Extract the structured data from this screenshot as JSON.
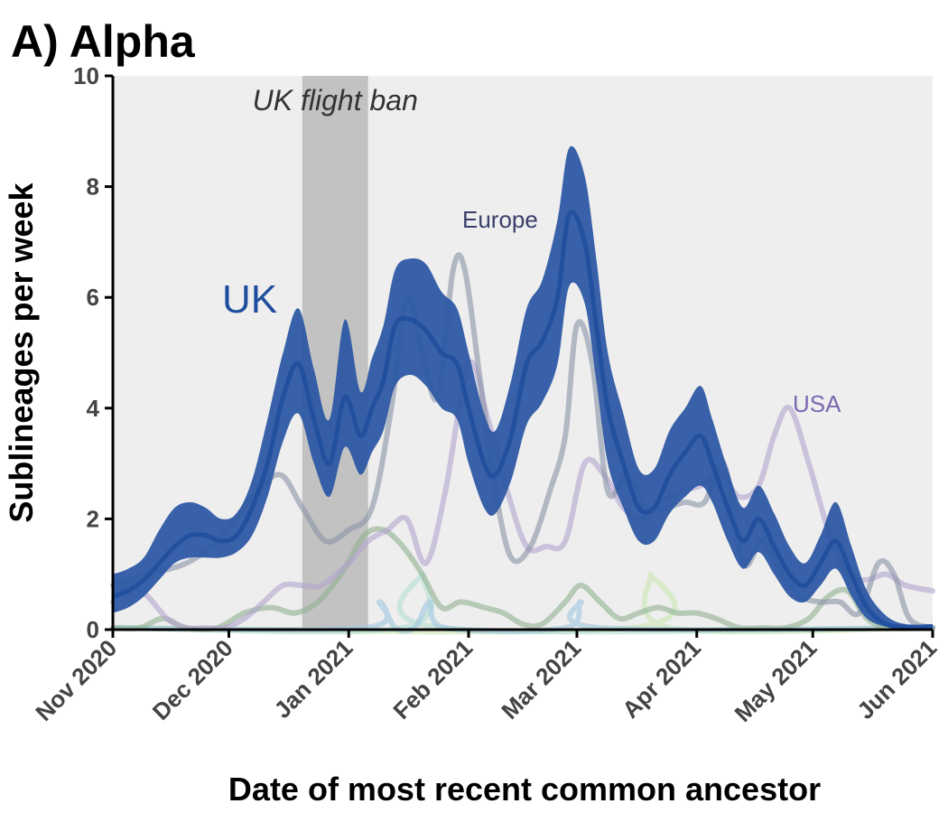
{
  "chart_data": {
    "type": "line",
    "title": "A) Alpha",
    "xlabel": "Date of most recent common ancestor",
    "ylabel": "Sublineages per week",
    "xlim": [
      "2020-11-01",
      "2021-06-01"
    ],
    "ylim": [
      0,
      10
    ],
    "yticks": [
      0,
      2,
      4,
      6,
      8,
      10
    ],
    "xticks": [
      {
        "date": "2020-11-01",
        "label": "Nov 2020"
      },
      {
        "date": "2020-12-01",
        "label": "Dec 2020"
      },
      {
        "date": "2021-01-01",
        "label": "Jan 2021"
      },
      {
        "date": "2021-02-01",
        "label": "Feb 2021"
      },
      {
        "date": "2021-03-01",
        "label": "Mar 2021"
      },
      {
        "date": "2021-04-01",
        "label": "Apr 2021"
      },
      {
        "date": "2021-05-01",
        "label": "May 2021"
      },
      {
        "date": "2021-06-01",
        "label": "Jun 2021"
      }
    ],
    "shaded_region": {
      "start": "2020-12-20",
      "end": "2021-01-06",
      "label": "UK flight ban"
    },
    "series": [
      {
        "name": "UK",
        "color": "#1f4e9e",
        "band_color": "#2d58a4",
        "x": [
          "2020-11-01",
          "2020-11-05",
          "2020-11-09",
          "2020-11-13",
          "2020-11-17",
          "2020-11-21",
          "2020-11-25",
          "2020-11-29",
          "2020-12-03",
          "2020-12-07",
          "2020-12-11",
          "2020-12-15",
          "2020-12-19",
          "2020-12-23",
          "2020-12-27",
          "2020-12-31",
          "2021-01-04",
          "2021-01-07",
          "2021-01-10",
          "2021-01-13",
          "2021-01-17",
          "2021-01-21",
          "2021-01-25",
          "2021-01-29",
          "2021-02-01",
          "2021-02-05",
          "2021-02-08",
          "2021-02-12",
          "2021-02-16",
          "2021-02-20",
          "2021-02-24",
          "2021-02-27",
          "2021-03-03",
          "2021-03-06",
          "2021-03-09",
          "2021-03-13",
          "2021-03-17",
          "2021-03-21",
          "2021-03-25",
          "2021-03-29",
          "2021-04-02",
          "2021-04-05",
          "2021-04-09",
          "2021-04-13",
          "2021-04-17",
          "2021-04-21",
          "2021-04-25",
          "2021-04-29",
          "2021-05-03",
          "2021-05-07",
          "2021-05-11",
          "2021-05-15",
          "2021-05-20",
          "2021-05-25",
          "2021-06-01"
        ],
        "values": [
          0.6,
          0.7,
          0.9,
          1.2,
          1.5,
          1.7,
          1.7,
          1.6,
          1.7,
          2.2,
          3.0,
          4.2,
          4.8,
          3.8,
          3.0,
          4.2,
          3.5,
          4.0,
          4.5,
          5.5,
          5.6,
          5.4,
          5.0,
          4.8,
          4.0,
          3.0,
          2.8,
          3.5,
          4.8,
          5.2,
          6.0,
          7.5,
          7.0,
          5.5,
          4.0,
          3.0,
          2.2,
          2.2,
          2.8,
          3.2,
          3.5,
          3.0,
          2.2,
          1.6,
          2.0,
          1.5,
          1.0,
          0.8,
          1.2,
          1.6,
          1.0,
          0.4,
          0.1,
          0.05,
          0.05
        ],
        "lower": [
          0.3,
          0.4,
          0.6,
          0.9,
          1.2,
          1.3,
          1.3,
          1.3,
          1.4,
          1.7,
          2.4,
          3.4,
          3.9,
          3.0,
          2.4,
          3.3,
          2.8,
          3.2,
          3.6,
          4.4,
          4.6,
          4.4,
          4.0,
          3.8,
          3.0,
          2.2,
          2.1,
          2.7,
          3.7,
          4.1,
          4.8,
          6.2,
          5.9,
          4.5,
          3.0,
          2.2,
          1.6,
          1.6,
          2.1,
          2.4,
          2.6,
          2.3,
          1.6,
          1.1,
          1.4,
          1.0,
          0.6,
          0.5,
          0.8,
          1.1,
          0.6,
          0.2,
          0.05,
          0.0,
          0.0
        ],
        "upper": [
          1.0,
          1.1,
          1.3,
          1.8,
          2.2,
          2.3,
          2.2,
          2.0,
          2.1,
          2.7,
          3.8,
          5.0,
          5.8,
          4.7,
          3.8,
          5.6,
          4.3,
          4.9,
          5.5,
          6.5,
          6.7,
          6.6,
          6.1,
          5.8,
          5.0,
          3.9,
          3.6,
          4.5,
          5.8,
          6.3,
          7.4,
          8.7,
          8.2,
          6.7,
          5.0,
          3.9,
          2.9,
          2.9,
          3.6,
          4.0,
          4.4,
          3.8,
          2.9,
          2.2,
          2.6,
          2.1,
          1.5,
          1.2,
          1.7,
          2.3,
          1.5,
          0.7,
          0.25,
          0.1,
          0.1
        ]
      },
      {
        "name": "Europe",
        "color": "#8a93a8",
        "x": [
          "2020-11-01",
          "2020-11-10",
          "2020-11-20",
          "2020-11-28",
          "2020-12-06",
          "2020-12-14",
          "2020-12-20",
          "2020-12-26",
          "2021-01-01",
          "2021-01-07",
          "2021-01-12",
          "2021-01-16",
          "2021-01-20",
          "2021-01-24",
          "2021-01-28",
          "2021-01-31",
          "2021-02-04",
          "2021-02-08",
          "2021-02-12",
          "2021-02-17",
          "2021-02-22",
          "2021-02-26",
          "2021-03-01",
          "2021-03-05",
          "2021-03-09",
          "2021-03-14",
          "2021-03-19",
          "2021-03-24",
          "2021-03-29",
          "2021-04-03",
          "2021-04-08",
          "2021-04-13",
          "2021-04-18",
          "2021-04-23",
          "2021-04-28",
          "2021-05-03",
          "2021-05-08",
          "2021-05-13",
          "2021-05-18",
          "2021-05-22",
          "2021-05-26",
          "2021-06-01"
        ],
        "values": [
          0.8,
          1.0,
          1.2,
          1.6,
          2.3,
          2.8,
          2.2,
          1.6,
          1.8,
          2.2,
          4.0,
          6.0,
          5.0,
          4.2,
          6.5,
          6.5,
          4.5,
          2.5,
          1.3,
          1.5,
          2.5,
          3.5,
          5.5,
          4.8,
          2.5,
          2.8,
          2.2,
          2.2,
          2.3,
          2.3,
          3.0,
          1.2,
          1.6,
          1.0,
          0.6,
          0.5,
          0.5,
          0.3,
          1.2,
          1.0,
          0.2,
          0.0
        ]
      },
      {
        "name": "USA",
        "color": "#b3a4cf",
        "x": [
          "2020-11-01",
          "2020-11-05",
          "2020-11-10",
          "2020-11-15",
          "2020-11-20",
          "2020-11-25",
          "2020-11-30",
          "2020-12-05",
          "2020-12-10",
          "2020-12-15",
          "2020-12-20",
          "2020-12-25",
          "2021-01-01",
          "2021-01-06",
          "2021-01-11",
          "2021-01-16",
          "2021-01-21",
          "2021-01-26",
          "2021-02-01",
          "2021-02-06",
          "2021-02-11",
          "2021-02-16",
          "2021-02-21",
          "2021-02-26",
          "2021-03-03",
          "2021-03-08",
          "2021-03-13",
          "2021-03-18",
          "2021-03-23",
          "2021-03-28",
          "2021-04-02",
          "2021-04-07",
          "2021-04-12",
          "2021-04-17",
          "2021-04-21",
          "2021-04-25",
          "2021-04-30",
          "2021-05-05",
          "2021-05-10",
          "2021-05-15",
          "2021-05-20",
          "2021-05-25",
          "2021-06-01"
        ],
        "values": [
          0.5,
          0.8,
          0.6,
          0.2,
          0.0,
          0.0,
          0.0,
          0.2,
          0.5,
          0.8,
          0.8,
          0.8,
          1.2,
          1.6,
          1.8,
          2.0,
          1.2,
          2.5,
          4.8,
          3.8,
          2.5,
          1.5,
          1.5,
          1.6,
          3.0,
          2.8,
          2.2,
          2.0,
          2.3,
          2.5,
          2.6,
          2.8,
          2.4,
          2.6,
          3.5,
          4.0,
          3.0,
          1.8,
          1.0,
          0.9,
          1.0,
          0.8,
          0.7
        ]
      },
      {
        "name": "",
        "color": "#8fb08f",
        "x": [
          "2020-11-01",
          "2020-11-08",
          "2020-11-14",
          "2020-11-20",
          "2020-11-28",
          "2020-12-05",
          "2020-12-12",
          "2020-12-18",
          "2020-12-24",
          "2020-12-30",
          "2021-01-05",
          "2021-01-10",
          "2021-01-15",
          "2021-01-20",
          "2021-01-25",
          "2021-01-30",
          "2021-02-05",
          "2021-02-10",
          "2021-02-15",
          "2021-02-20",
          "2021-02-26",
          "2021-03-02",
          "2021-03-07",
          "2021-03-12",
          "2021-03-17",
          "2021-03-22",
          "2021-03-27",
          "2021-04-01",
          "2021-04-06",
          "2021-04-12",
          "2021-04-18",
          "2021-04-24",
          "2021-04-30",
          "2021-05-05",
          "2021-05-10",
          "2021-05-15",
          "2021-05-21",
          "2021-06-01"
        ],
        "values": [
          0.0,
          0.0,
          0.2,
          0.0,
          0.0,
          0.3,
          0.4,
          0.3,
          0.5,
          1.0,
          1.7,
          1.8,
          1.5,
          1.0,
          0.4,
          0.5,
          0.4,
          0.3,
          0.1,
          0.1,
          0.5,
          0.8,
          0.5,
          0.2,
          0.3,
          0.4,
          0.3,
          0.3,
          0.2,
          0.0,
          0.0,
          0.0,
          0.2,
          0.6,
          0.7,
          0.2,
          0.0,
          0.0
        ]
      },
      {
        "name": "",
        "color": "#9fc7e0",
        "x": [
          "2020-11-01",
          "2021-01-05",
          "2021-01-09",
          "2021-01-13",
          "2021-01-18",
          "2021-01-22",
          "2021-01-26",
          "2021-02-26",
          "2021-03-02",
          "2021-03-07",
          "2021-06-01"
        ],
        "values": [
          0.0,
          0.0,
          0.5,
          0.0,
          0.0,
          0.5,
          0.0,
          0.0,
          0.5,
          0.0,
          0.0
        ]
      },
      {
        "name": "",
        "color": "#b3dfd2",
        "x": [
          "2020-11-01",
          "2021-01-15",
          "2021-01-20",
          "2021-01-25",
          "2021-06-01"
        ],
        "values": [
          0.0,
          0.0,
          1.0,
          0.0,
          0.0
        ]
      },
      {
        "name": "",
        "color": "#c9e8b3",
        "x": [
          "2020-11-01",
          "2021-03-15",
          "2021-03-20",
          "2021-03-25",
          "2021-06-01"
        ],
        "values": [
          0.0,
          0.0,
          1.0,
          0.0,
          0.0
        ]
      }
    ],
    "series_labels": [
      {
        "series": "UK",
        "text": "UK",
        "color": "#1f4e9e"
      },
      {
        "series": "Europe",
        "text": "Europe",
        "color": "#3a3f6b"
      },
      {
        "series": "USA",
        "text": "USA",
        "color": "#7b68b0"
      }
    ]
  }
}
